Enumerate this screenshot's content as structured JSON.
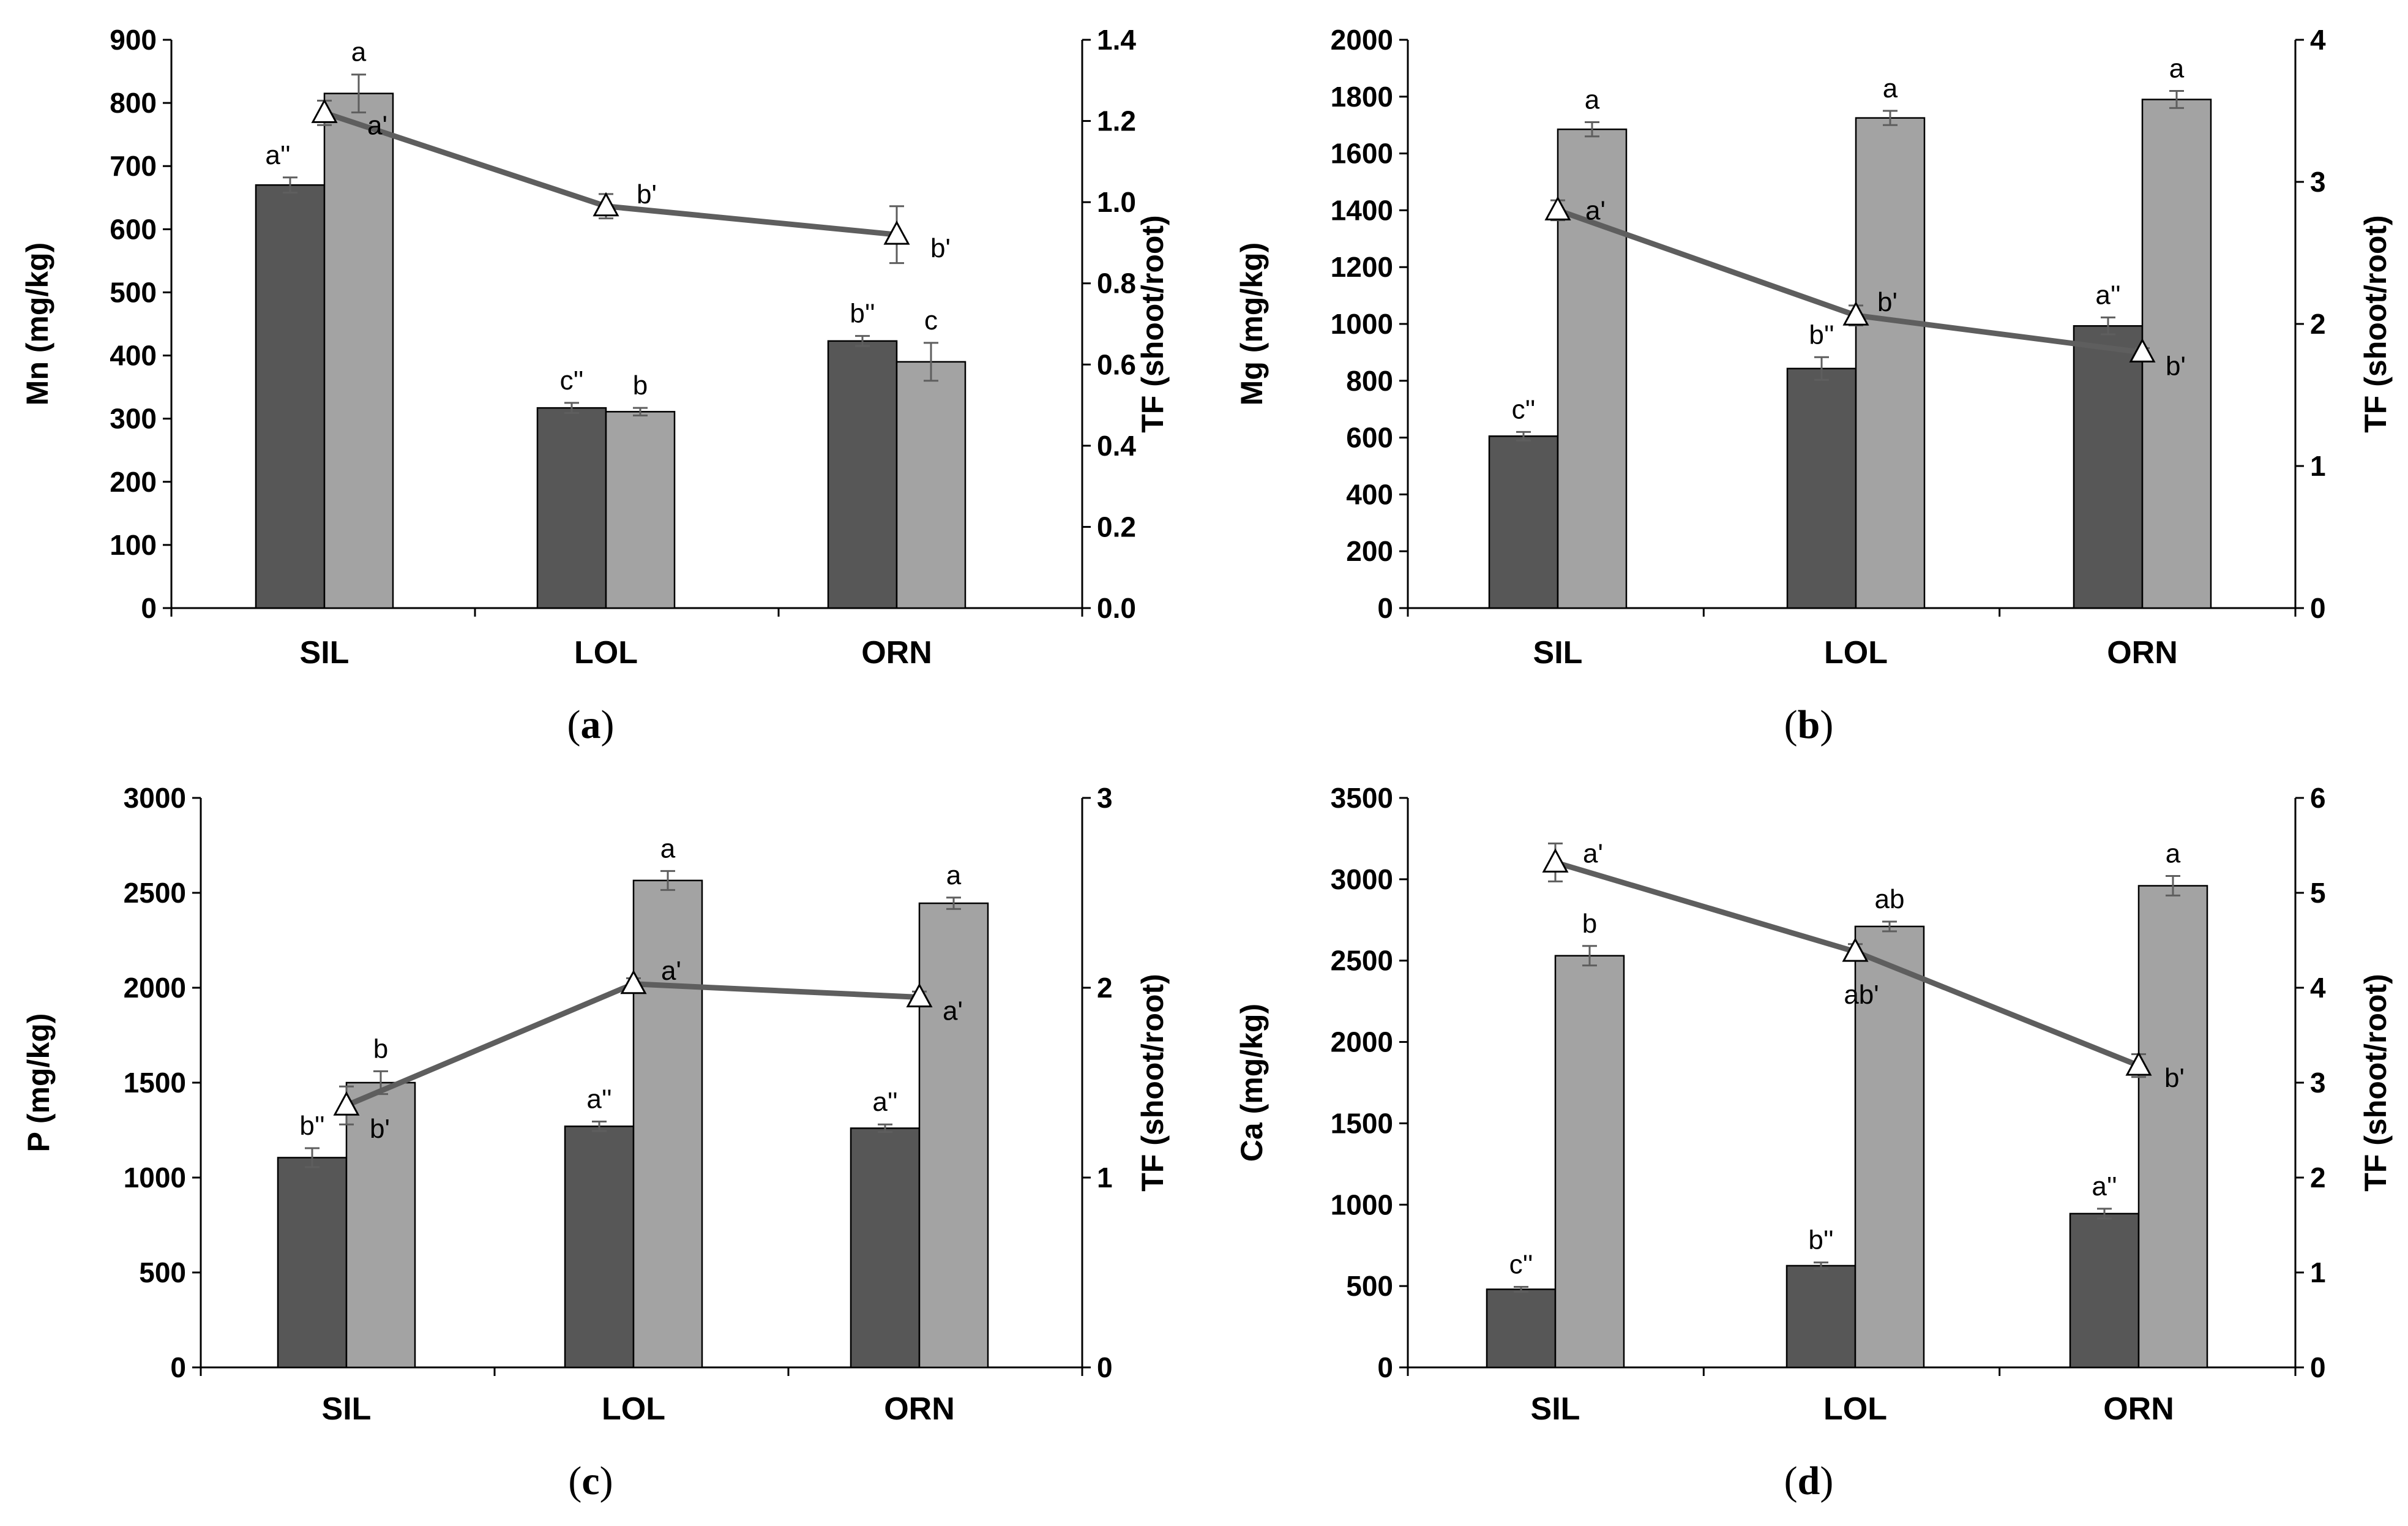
{
  "chart_data": [
    {
      "type": "bar",
      "panel": "(a)",
      "panel_letter": "a",
      "categories": [
        "SIL",
        "LOL",
        "ORN"
      ],
      "ylabel": "Mn (mg/kg)",
      "y2label": "TF (shoot/root)",
      "ylim": [
        0,
        900
      ],
      "ystep": 100,
      "ydecimals": 0,
      "y2lim": [
        0,
        1.4
      ],
      "y2step": 0.2,
      "y2decimals": 1,
      "series": [
        {
          "name": "root",
          "color": "#575757",
          "values": [
            670,
            317,
            423
          ],
          "errors": [
            12,
            8,
            8
          ],
          "labels": [
            "a''",
            "c''",
            "b''"
          ]
        },
        {
          "name": "shoot",
          "color": "#a3a3a3",
          "values": [
            815,
            311,
            390
          ],
          "errors": [
            30,
            6,
            30
          ],
          "labels": [
            "a",
            "b",
            "c"
          ]
        }
      ],
      "tf": {
        "name": "TF",
        "values": [
          1.22,
          0.99,
          0.92
        ],
        "errors": [
          0.03,
          0.03,
          0.07
        ],
        "labels": [
          "a'",
          "b'",
          "b'"
        ]
      }
    },
    {
      "type": "bar",
      "panel": "(b)",
      "panel_letter": "b",
      "categories": [
        "SIL",
        "LOL",
        "ORN"
      ],
      "ylabel": "Mg (mg/kg)",
      "y2label": "TF (shoot/root)",
      "ylim": [
        0,
        2000
      ],
      "ystep": 200,
      "ydecimals": 0,
      "y2lim": [
        0,
        4
      ],
      "y2step": 1,
      "y2decimals": 0,
      "series": [
        {
          "name": "root",
          "color": "#575757",
          "values": [
            605,
            843,
            993
          ],
          "errors": [
            15,
            40,
            30
          ],
          "labels": [
            "c''",
            "b''",
            "a''"
          ]
        },
        {
          "name": "shoot",
          "color": "#a3a3a3",
          "values": [
            1685,
            1725,
            1790
          ],
          "errors": [
            25,
            25,
            30
          ],
          "labels": [
            "a",
            "a",
            "a"
          ]
        }
      ],
      "tf": {
        "name": "TF",
        "values": [
          2.8,
          2.06,
          1.8
        ],
        "errors": [
          0.07,
          0.07,
          0.03
        ],
        "labels": [
          "a'",
          "b'",
          "b'"
        ]
      }
    },
    {
      "type": "bar",
      "panel": "(c)",
      "panel_letter": "c",
      "categories": [
        "SIL",
        "LOL",
        "ORN"
      ],
      "ylabel": "P (mg/kg)",
      "y2label": "TF (shoot/root)",
      "ylim": [
        0,
        3000
      ],
      "ystep": 500,
      "ydecimals": 0,
      "y2lim": [
        0,
        3
      ],
      "y2step": 1,
      "y2decimals": 0,
      "series": [
        {
          "name": "root",
          "color": "#575757",
          "values": [
            1105,
            1270,
            1260
          ],
          "errors": [
            50,
            25,
            20
          ],
          "labels": [
            "b''",
            "a''",
            "a''"
          ]
        },
        {
          "name": "shoot",
          "color": "#a3a3a3",
          "values": [
            1500,
            2565,
            2445
          ],
          "errors": [
            60,
            50,
            30
          ],
          "labels": [
            "b",
            "a",
            "a"
          ]
        }
      ],
      "tf": {
        "name": "TF",
        "values": [
          1.38,
          2.02,
          1.95
        ],
        "errors": [
          0.1,
          0.03,
          0.03
        ],
        "labels": [
          "b'",
          "a'",
          "a'"
        ]
      }
    },
    {
      "type": "bar",
      "panel": "(d)",
      "panel_letter": "d",
      "categories": [
        "SIL",
        "LOL",
        "ORN"
      ],
      "ylabel": "Ca (mg/kg)",
      "y2label": "TF (shoot/root)",
      "ylim": [
        0,
        3500
      ],
      "ystep": 500,
      "ydecimals": 0,
      "y2lim": [
        0,
        6
      ],
      "y2step": 1,
      "y2decimals": 0,
      "series": [
        {
          "name": "root",
          "color": "#575757",
          "values": [
            480,
            625,
            945
          ],
          "errors": [
            15,
            20,
            30
          ],
          "labels": [
            "c''",
            "b''",
            "a''"
          ]
        },
        {
          "name": "shoot",
          "color": "#a3a3a3",
          "values": [
            2530,
            2710,
            2960
          ],
          "errors": [
            60,
            30,
            60
          ],
          "labels": [
            "b",
            "ab",
            "a"
          ]
        }
      ],
      "tf": {
        "name": "TF",
        "values": [
          5.32,
          4.38,
          3.18
        ],
        "errors": [
          0.2,
          0.08,
          0.12
        ],
        "labels": [
          "a'",
          "ab'",
          "b'"
        ]
      }
    }
  ]
}
